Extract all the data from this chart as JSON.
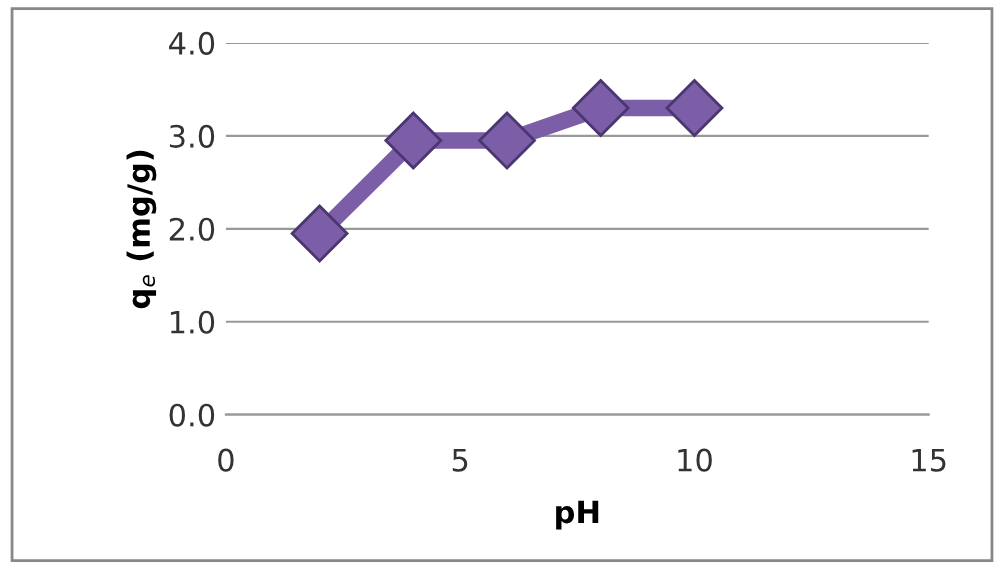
{
  "chart_data": {
    "type": "line",
    "xlabel": "pH",
    "ylabel": "q$_{e}$ (mg/g)",
    "x": [
      2,
      4,
      6,
      8,
      10
    ],
    "series": [
      {
        "color": "#7b5ea7",
        "values": [
          1.95,
          2.95,
          2.95,
          3.3,
          3.3
        ]
      }
    ],
    "xlim": [
      0,
      15
    ],
    "xticks": [
      0,
      5,
      10,
      15
    ],
    "ylim": [
      0,
      4
    ],
    "yticks": [
      {
        "value": 0,
        "label": "0.0"
      },
      {
        "value": 1,
        "label": "1.0"
      },
      {
        "value": 2,
        "label": "2.0"
      },
      {
        "value": 3,
        "label": "3.0"
      },
      {
        "value": 4,
        "label": "4.0"
      }
    ],
    "grid": "y",
    "marker": "diamond",
    "line_style": "solid",
    "legend": false
  }
}
